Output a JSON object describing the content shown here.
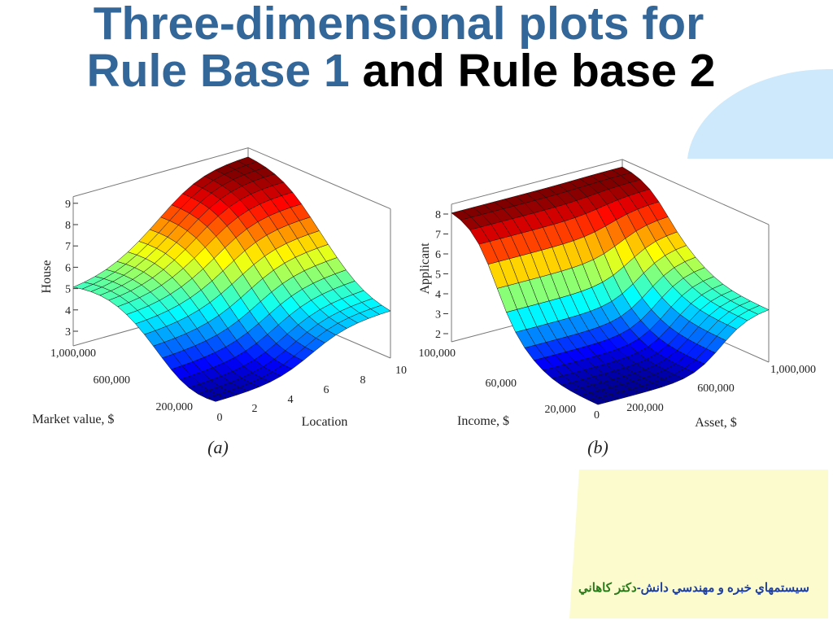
{
  "title": {
    "line1": "Three-dimensional plots for",
    "line2_blue": "Rule Base 1",
    "line2_black": "and Rule base 2"
  },
  "plots": [
    {
      "z_label": "House",
      "z_ticks": [
        "3",
        "4",
        "5",
        "6",
        "7",
        "8",
        "9"
      ],
      "x_label": "Market value, $",
      "x_ticks": [
        "1,000,000",
        "600,000",
        "200,000"
      ],
      "y_label": "Location",
      "y_ticks": [
        "0",
        "2",
        "4",
        "6",
        "8",
        "10"
      ],
      "caption": "(a)"
    },
    {
      "z_label": "Applicant",
      "z_ticks": [
        "2",
        "3",
        "4",
        "5",
        "6",
        "7",
        "8"
      ],
      "x_label": "Income, $",
      "x_ticks": [
        "100,000",
        "60,000",
        "20,000",
        "0"
      ],
      "y_label": "Asset, $",
      "y_ticks": [
        "200,000",
        "600,000",
        "1,000,000"
      ],
      "caption": "(b)"
    }
  ],
  "footer": {
    "part1": "سيستمهاي خبره و مهندسي دانش-",
    "part2": "دکتر کاهاني"
  }
}
